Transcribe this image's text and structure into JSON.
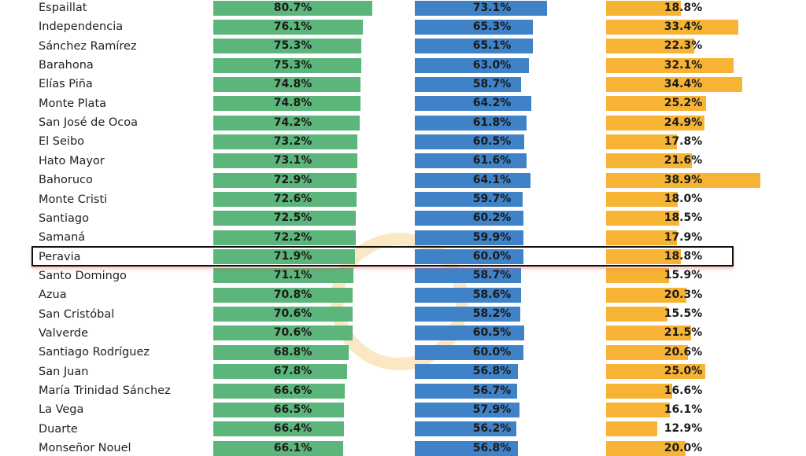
{
  "chart_data": {
    "type": "bar",
    "orientation": "horizontal",
    "title": "",
    "categories": [
      "Espaillat",
      "Independencia",
      "Sánchez Ramírez",
      "Barahona",
      "Elías Piña",
      "Monte Plata",
      "San José de Ocoa",
      "El Seibo",
      "Hato Mayor",
      "Bahoruco",
      "Monte Cristi",
      "Santiago",
      "Samaná",
      "Peravia",
      "Santo Domingo",
      "Azua",
      "San Cristóbal",
      "Valverde",
      "Santiago Rodríguez",
      "San Juan",
      "María Trinidad Sánchez",
      "La Vega",
      "Duarte",
      "Monseñor Nouel"
    ],
    "series": [
      {
        "color": "#5cb57a",
        "values": [
          80.7,
          76.1,
          75.3,
          75.3,
          74.8,
          74.8,
          74.2,
          73.2,
          73.1,
          72.9,
          72.6,
          72.5,
          72.2,
          71.9,
          71.1,
          70.8,
          70.6,
          70.6,
          68.8,
          67.8,
          66.6,
          66.5,
          66.4,
          66.1
        ]
      },
      {
        "color": "#3f82c8",
        "values": [
          73.1,
          65.3,
          65.1,
          63.0,
          58.7,
          64.2,
          61.8,
          60.5,
          61.6,
          64.1,
          59.7,
          60.2,
          59.9,
          60.0,
          58.7,
          58.6,
          58.2,
          60.5,
          60.0,
          56.8,
          56.7,
          57.9,
          56.2,
          56.8
        ]
      },
      {
        "color": "#f6b334",
        "values": [
          18.8,
          33.4,
          22.3,
          32.1,
          34.4,
          25.2,
          24.9,
          17.8,
          21.6,
          38.9,
          18.0,
          18.5,
          17.9,
          18.8,
          15.9,
          20.3,
          15.5,
          21.5,
          20.6,
          25.0,
          16.6,
          16.1,
          12.9,
          20.0
        ]
      }
    ],
    "value_suffix": "%",
    "highlighted_category": "Peravia",
    "grid": false
  }
}
